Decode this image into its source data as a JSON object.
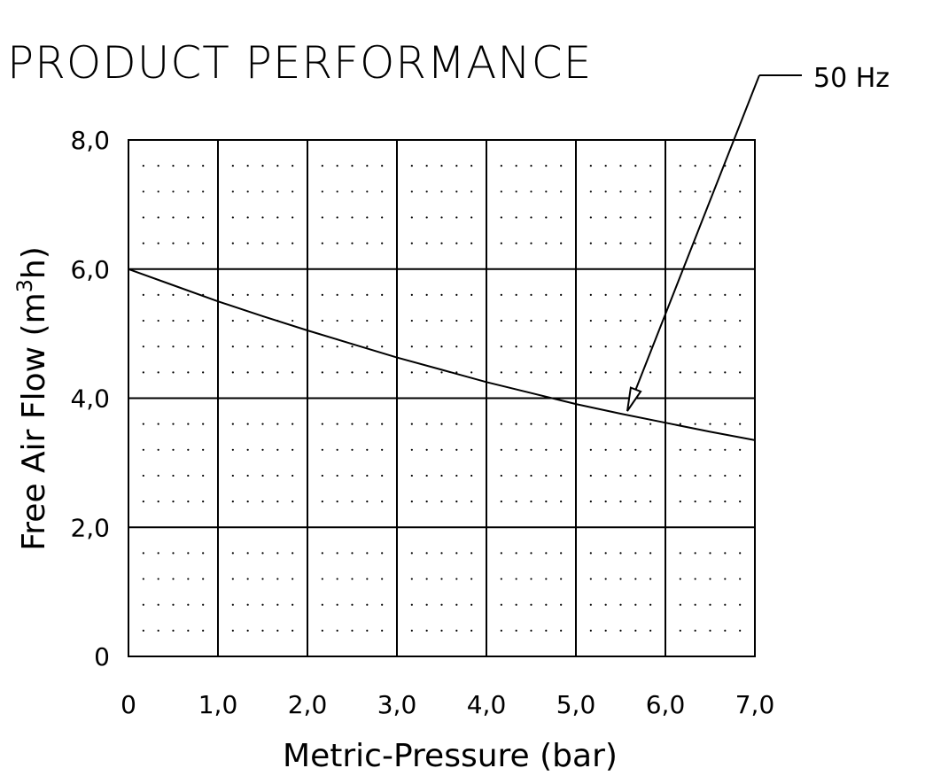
{
  "title": "PRODUCT PERFORMANCE",
  "chart_data": {
    "type": "line",
    "title": "PRODUCT PERFORMANCE",
    "xlabel": "Metric-Pressure (bar)",
    "ylabel": "Free Air Flow (m³h)",
    "ylabel_parts": {
      "before": "Free Air Flow (m",
      "sup": "3",
      "after": "h)"
    },
    "xlim": [
      0,
      7
    ],
    "ylim": [
      0,
      8
    ],
    "x_ticks": [
      "0",
      "1,0",
      "2,0",
      "3,0",
      "4,0",
      "5,0",
      "6,0",
      "7,0"
    ],
    "y_ticks": [
      "0",
      "2,0",
      "4,0",
      "6,0",
      "8,0"
    ],
    "grid": true,
    "series": [
      {
        "name": "50 Hz",
        "x": [
          0,
          0.5,
          1,
          1.5,
          2,
          2.5,
          3,
          3.5,
          4,
          4.5,
          5,
          5.5,
          6,
          6.5,
          7
        ],
        "y": [
          6.0,
          5.75,
          5.5,
          5.27,
          5.05,
          4.84,
          4.63,
          4.44,
          4.25,
          4.08,
          3.91,
          3.76,
          3.62,
          3.48,
          3.35
        ]
      }
    ],
    "legend": "top-right, arrow annotation to curve"
  }
}
